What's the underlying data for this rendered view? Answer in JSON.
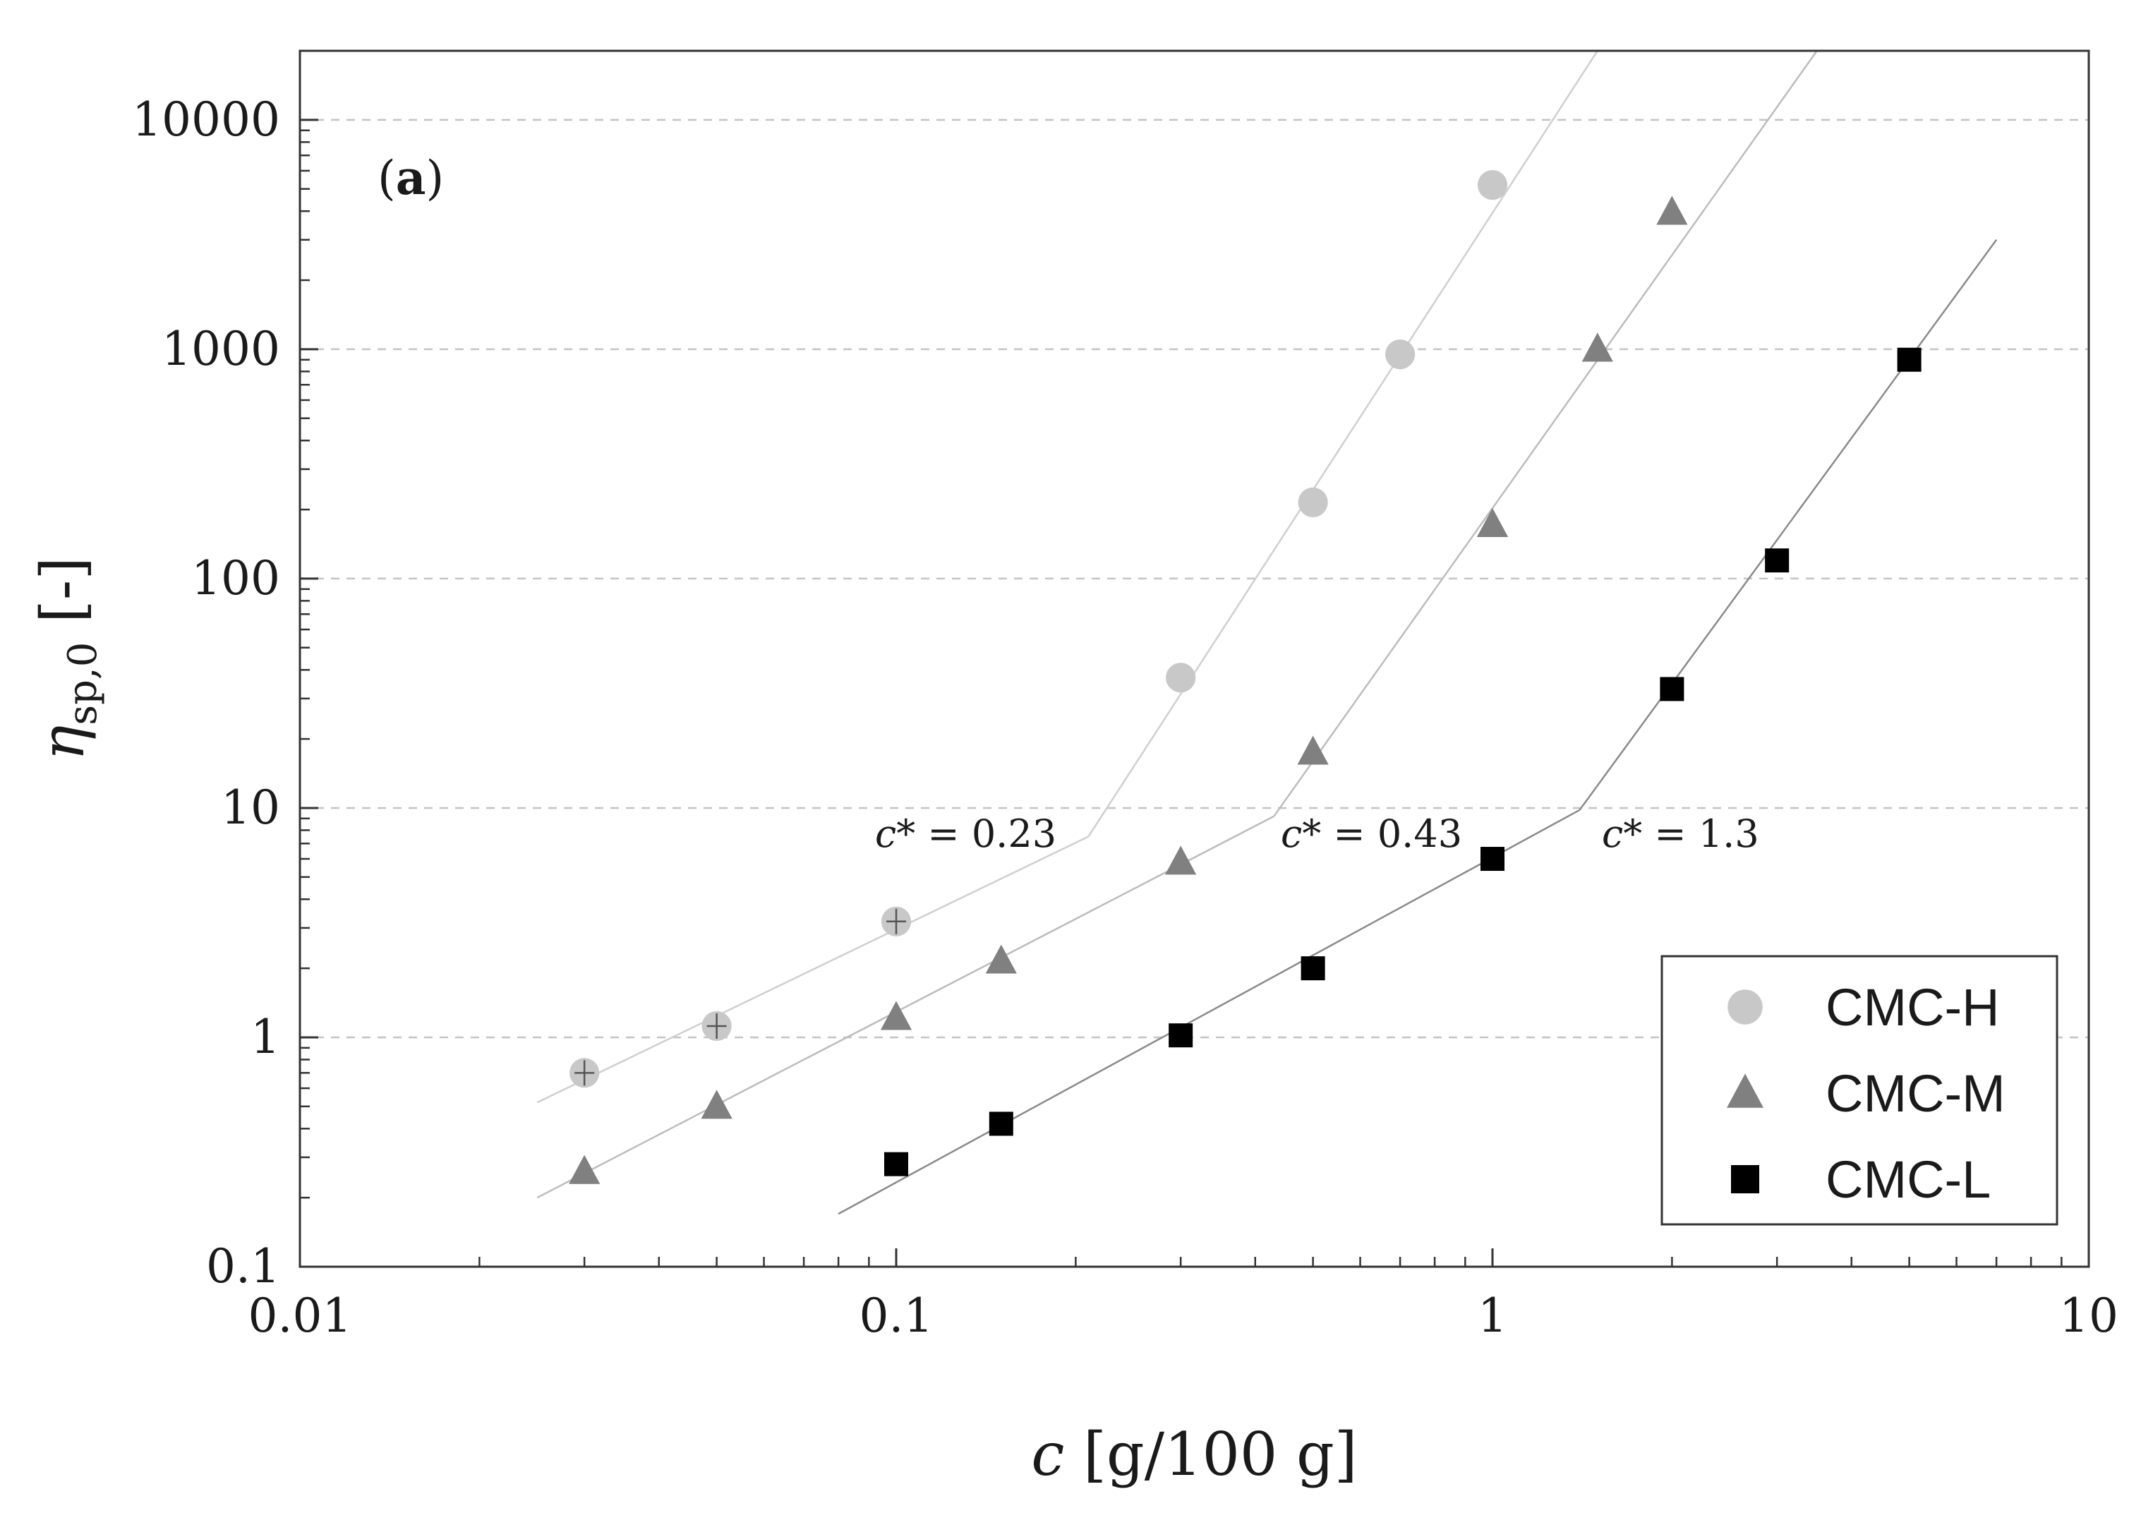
{
  "chart_data": {
    "type": "scatter",
    "panel_label": "a",
    "x_axis": {
      "label_symbol": "c",
      "label_unit": " [g/100 g]",
      "scale": "log",
      "range": [
        0.01,
        10
      ],
      "ticks": [
        0.01,
        0.1,
        1,
        10
      ],
      "tick_labels": [
        "0.01",
        "0.1",
        "1",
        "10"
      ]
    },
    "y_axis": {
      "label_symbol": "η",
      "label_subscript": "sp,0",
      "label_unit": " [-]",
      "scale": "log",
      "range": [
        0.1,
        20000
      ],
      "ticks": [
        0.1,
        1,
        10,
        100,
        1000,
        10000
      ],
      "tick_labels": [
        "0.1",
        "1",
        "10",
        "100",
        "1000",
        "10000"
      ],
      "grid": "dashed horizontal at major ticks"
    },
    "series": [
      {
        "name": "CMC-H",
        "marker": "circle",
        "color": "#c8c8c8",
        "points": [
          [
            0.03,
            0.7
          ],
          [
            0.05,
            1.12
          ],
          [
            0.1,
            3.2
          ],
          [
            0.3,
            37
          ],
          [
            0.5,
            215
          ],
          [
            0.7,
            950
          ],
          [
            1.0,
            5200
          ]
        ],
        "fit_lines": [
          [
            [
              0.025,
              0.52
            ],
            [
              0.21,
              7.5
            ]
          ],
          [
            [
              0.21,
              7.5
            ],
            [
              1.5,
              20000
            ]
          ]
        ],
        "fit_color": "#cfcfcf",
        "critical_concentration": {
          "text": "c* = 0.23",
          "symbol": "c*",
          "value": "0.23",
          "x": 0.21,
          "y": 7.5
        }
      },
      {
        "name": "CMC-M",
        "marker": "triangle",
        "color": "#808080",
        "points": [
          [
            0.03,
            0.26
          ],
          [
            0.05,
            0.5
          ],
          [
            0.1,
            1.22
          ],
          [
            0.15,
            2.15
          ],
          [
            0.3,
            5.8
          ],
          [
            0.5,
            17.5
          ],
          [
            1.0,
            172
          ],
          [
            1.5,
            1000
          ],
          [
            2.0,
            3950
          ]
        ],
        "fit_lines": [
          [
            [
              0.025,
              0.2
            ],
            [
              0.43,
              9.2
            ]
          ],
          [
            [
              0.43,
              9.2
            ],
            [
              3.5,
              20000
            ]
          ]
        ],
        "fit_color": "#bcbcbc",
        "critical_concentration": {
          "text": "c* = 0.43",
          "symbol": "c*",
          "value": "0.43",
          "x": 0.43,
          "y": 9.2
        }
      },
      {
        "name": "CMC-L",
        "marker": "square",
        "color": "#000000",
        "points": [
          [
            0.1,
            0.28
          ],
          [
            0.15,
            0.42
          ],
          [
            0.3,
            1.02
          ],
          [
            0.5,
            2.0
          ],
          [
            1.0,
            6.0
          ],
          [
            2.0,
            33
          ],
          [
            3.0,
            120
          ],
          [
            5.0,
            900
          ]
        ],
        "fit_lines": [
          [
            [
              0.08,
              0.17
            ],
            [
              1.4,
              9.8
            ]
          ],
          [
            [
              1.4,
              9.8
            ],
            [
              7.0,
              3000
            ]
          ]
        ],
        "fit_color": "#8a8a8a",
        "critical_concentration": {
          "text": "c* = 1.3",
          "symbol": "c*",
          "value": "1.3",
          "x": 1.4,
          "y": 9.8
        }
      }
    ],
    "legend": {
      "position": "bottom-right",
      "entries": [
        "CMC-H",
        "CMC-M",
        "CMC-L"
      ]
    }
  }
}
